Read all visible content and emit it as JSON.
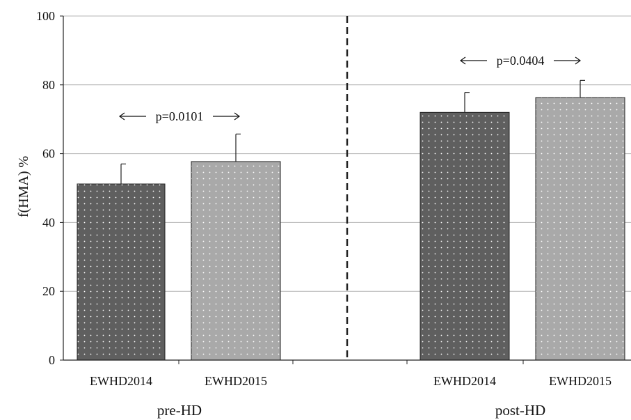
{
  "chart_data": {
    "type": "bar",
    "ylabel": "f(HMA) %",
    "ylim": [
      0,
      100
    ],
    "yticks": [
      0,
      20,
      40,
      60,
      80,
      100
    ],
    "grid": true,
    "groups": [
      {
        "name": "pre-HD",
        "bars": [
          {
            "label": "EWHD2014",
            "value": 51.2,
            "error": 5.8
          },
          {
            "label": "EWHD2015",
            "value": 57.7,
            "error": 8.0
          }
        ],
        "annotation": "p=0.0101"
      },
      {
        "name": "post-HD",
        "bars": [
          {
            "label": "EWHD2014",
            "value": 72.0,
            "error": 5.8
          },
          {
            "label": "EWHD2015",
            "value": 76.3,
            "error": 5.0
          }
        ],
        "annotation": "p=0.0404"
      }
    ],
    "colors": {
      "EWHD2014": "#5f5f5f",
      "EWHD2015": "#a9a9a9"
    }
  }
}
